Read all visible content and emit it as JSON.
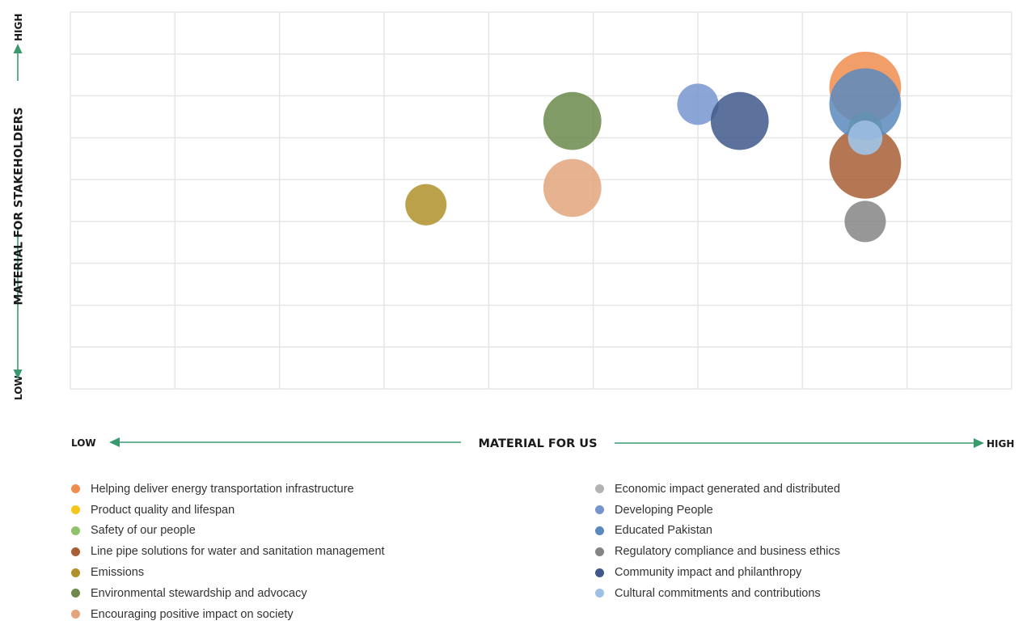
{
  "chart_data": {
    "type": "scatter",
    "subtype": "bubble",
    "title": "",
    "xlabel": "MATERIAL FOR US",
    "ylabel": "MATERIAL FOR STAKEHOLDERS",
    "x_low_label": "LOW",
    "x_high_label": "HIGH",
    "y_low_label": "LOW",
    "y_high_label": "HIGH",
    "xlim": [
      0,
      9
    ],
    "ylim": [
      0,
      9
    ],
    "grid": true,
    "tick_labels_shown": false,
    "legend_position": "bottom",
    "colors": {
      "axis_arrow": "#3a9a6e",
      "grid": "#e6e6e6"
    },
    "series": [
      {
        "name": "Helping deliver energy transportation infrastructure",
        "color": "#ef8d4f",
        "x": 7.6,
        "y": 7.2,
        "size": 0.73
      },
      {
        "name": "Product quality and lifespan",
        "color": "#f5c518",
        "x": 7.6,
        "y": 6.0,
        "size": 0.35
      },
      {
        "name": "Safety of our people",
        "color": "#8fc36a",
        "x": 7.6,
        "y": 6.2,
        "size": 0.35
      },
      {
        "name": "Line pipe solutions for water and sanitation management",
        "color": "#a85f35",
        "x": 7.6,
        "y": 5.4,
        "size": 0.73
      },
      {
        "name": "Emissions",
        "color": "#b0902b",
        "x": 3.4,
        "y": 4.4,
        "size": 0.42
      },
      {
        "name": "Environmental stewardship and advocacy",
        "color": "#6b8a4c",
        "x": 4.8,
        "y": 6.4,
        "size": 0.59
      },
      {
        "name": "Encouraging positive impact on society",
        "color": "#e3a47c",
        "x": 4.8,
        "y": 4.8,
        "size": 0.59
      },
      {
        "name": "Economic impact generated and distributed",
        "color": "#b3b3b3",
        "x": 7.6,
        "y": 6.0,
        "size": 0.35
      },
      {
        "name": "Developing People",
        "color": "#7595cf",
        "x": 6.0,
        "y": 6.8,
        "size": 0.42
      },
      {
        "name": "Educated Pakistan",
        "color": "#5a89be",
        "x": 7.6,
        "y": 6.8,
        "size": 0.73
      },
      {
        "name": "Regulatory compliance and business ethics",
        "color": "#858585",
        "x": 7.6,
        "y": 4.0,
        "size": 0.42
      },
      {
        "name": "Community impact and philanthropy",
        "color": "#40588a",
        "x": 6.4,
        "y": 6.4,
        "size": 0.59
      },
      {
        "name": "Cultural commitments and contributions",
        "color": "#9fc1e3",
        "x": 7.6,
        "y": 6.0,
        "size": 0.35
      }
    ],
    "legend_columns": [
      [
        0,
        1,
        2,
        3,
        4,
        5,
        6
      ],
      [
        7,
        8,
        9,
        10,
        11,
        12
      ]
    ]
  }
}
